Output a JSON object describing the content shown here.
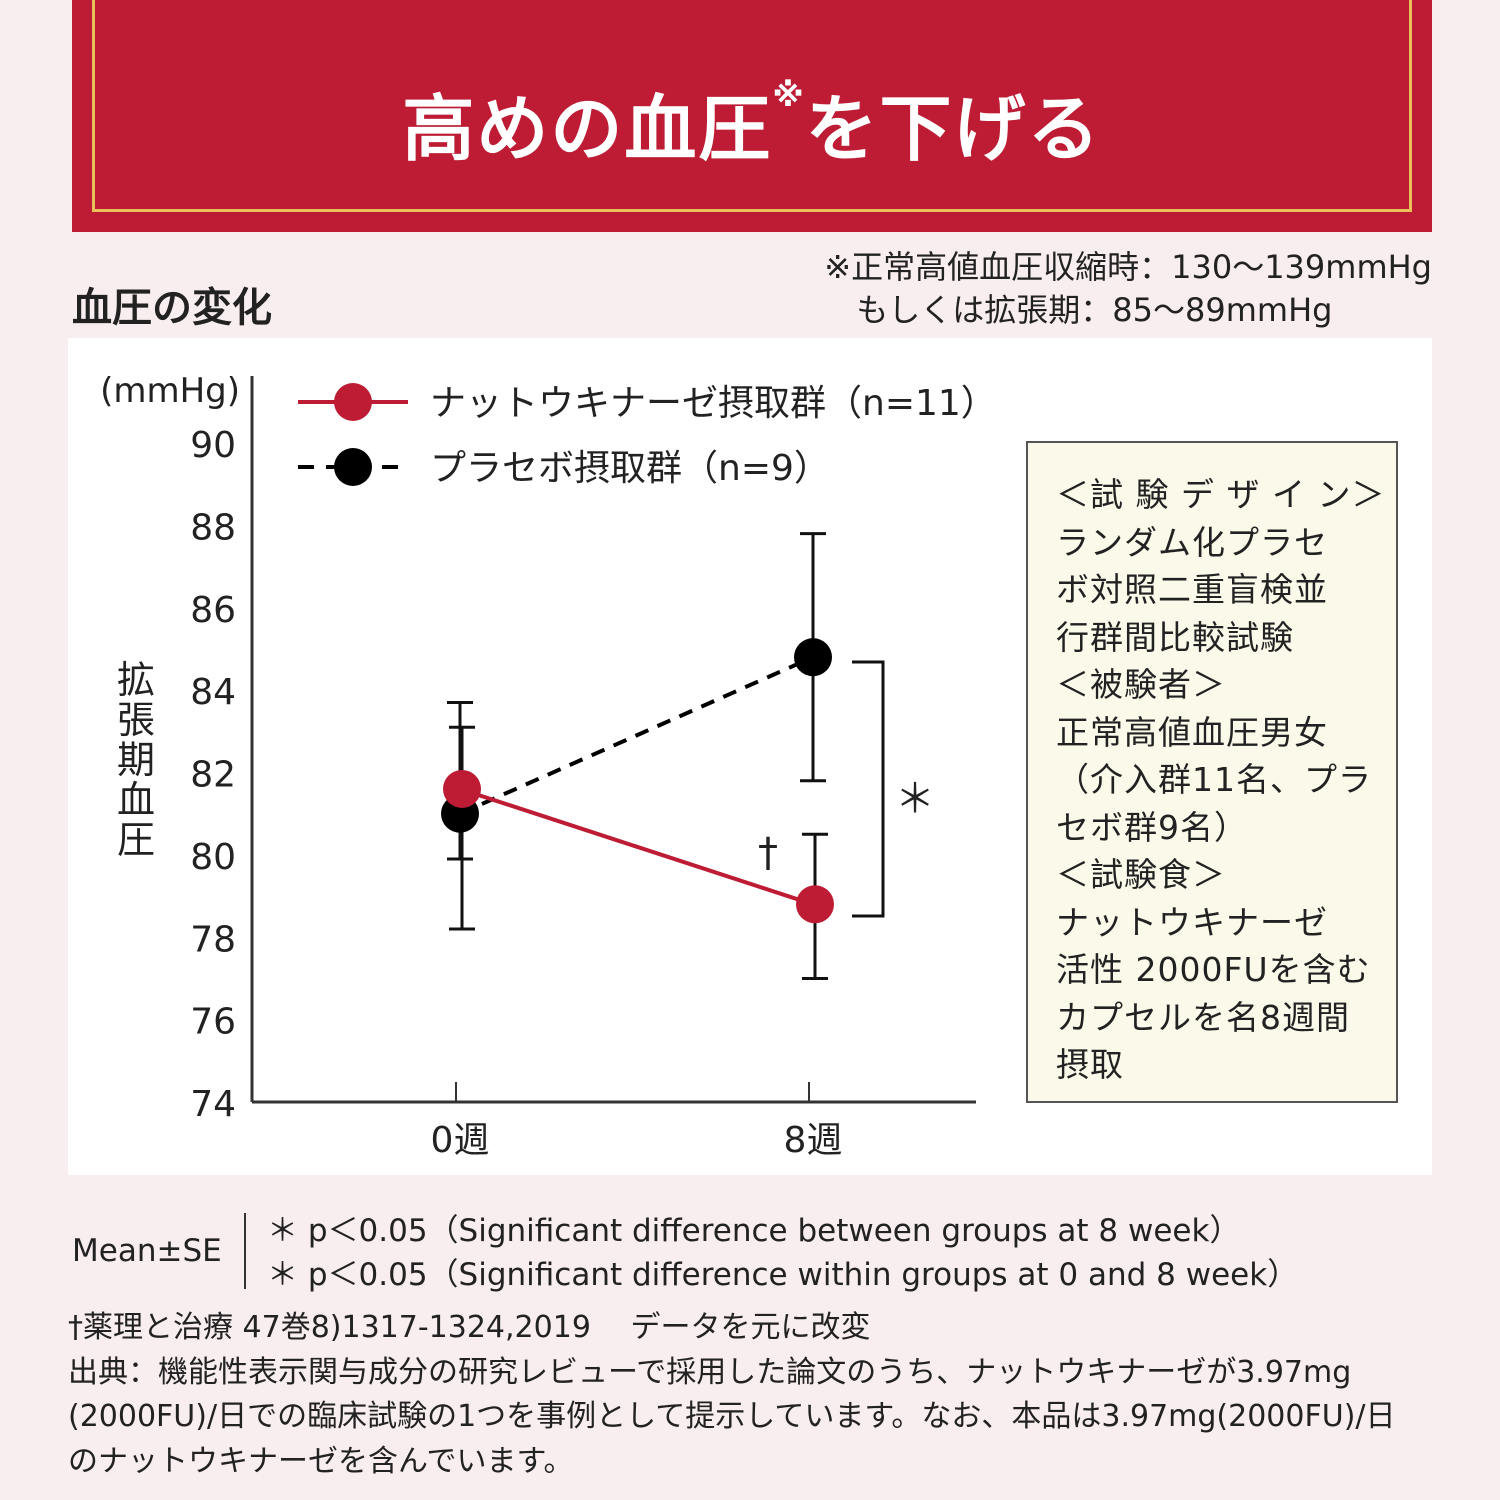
{
  "banner": {
    "title": "高めの血圧",
    "title_mark": "※",
    "title_rest": "を下げる"
  },
  "subtitle": "血圧の変化",
  "footnote_top": {
    "line1": "※正常高値血圧収縮時：130〜139mmHg",
    "line2": "もしくは拡張期：85〜89mmHg"
  },
  "colors": {
    "banner": "#bd1c34",
    "banner_frame": "#e8c15a",
    "nattokinase": "#bd1c34",
    "placebo": "#000000"
  },
  "chart_data": {
    "type": "line",
    "ylabel": "拡張期血圧",
    "yunit": "(mmHg)",
    "ylim": [
      74,
      90
    ],
    "yticks": [
      "74",
      "76",
      "78",
      "80",
      "82",
      "84",
      "86",
      "88",
      "90"
    ],
    "x": [
      "0週",
      "8週"
    ],
    "series": [
      {
        "name": "ナットウキナーゼ摂取群（n=11）",
        "color": "#bd1c34",
        "dash": false,
        "values": [
          81.6,
          78.8
        ],
        "err_low": [
          78.2,
          77.0
        ],
        "err_high": [
          83.1,
          80.5
        ]
      },
      {
        "name": "プラセボ摂取群（n=9）",
        "color": "#000000",
        "dash": true,
        "values": [
          81.0,
          84.8
        ],
        "err_low": [
          79.9,
          81.8
        ],
        "err_high": [
          83.7,
          87.8
        ]
      }
    ],
    "annotations": {
      "dagger": "†",
      "star": "＊"
    },
    "legend": "top-left"
  },
  "design_box": {
    "lines": [
      "＜試 験 デ ザ イ ン＞",
      "ランダム化プラセ",
      "ボ対照二重盲検並",
      "行群間比較試験",
      "＜被験者＞",
      "正常高値血圧男女",
      "（介入群11名、プラ",
      "セボ群9名）",
      "＜試験食＞",
      "ナットウキナーゼ",
      "活性 2000FUを含む",
      "カプセルを名8週間",
      "摂取"
    ]
  },
  "stats": {
    "mean": "Mean±SE",
    "line1": "＊ p＜0.05（Significant difference between groups at 8 week）",
    "line2": "＊ p＜0.05（Significant difference within groups at 0 and 8 week）"
  },
  "refs": {
    "line1": "†薬理と治療 47巻8)1317-1324,2019　 データを元に改変",
    "line2": "出典：機能性表示関与成分の研究レビューで採用した論文のうち、ナットウキナーゼが3.97mg",
    "line3": "(2000FU)/日での臨床試験の1つを事例として提示しています。なお、本品は3.97mg(2000FU)/日",
    "line4": "のナットウキナーゼを含んでいます。"
  }
}
